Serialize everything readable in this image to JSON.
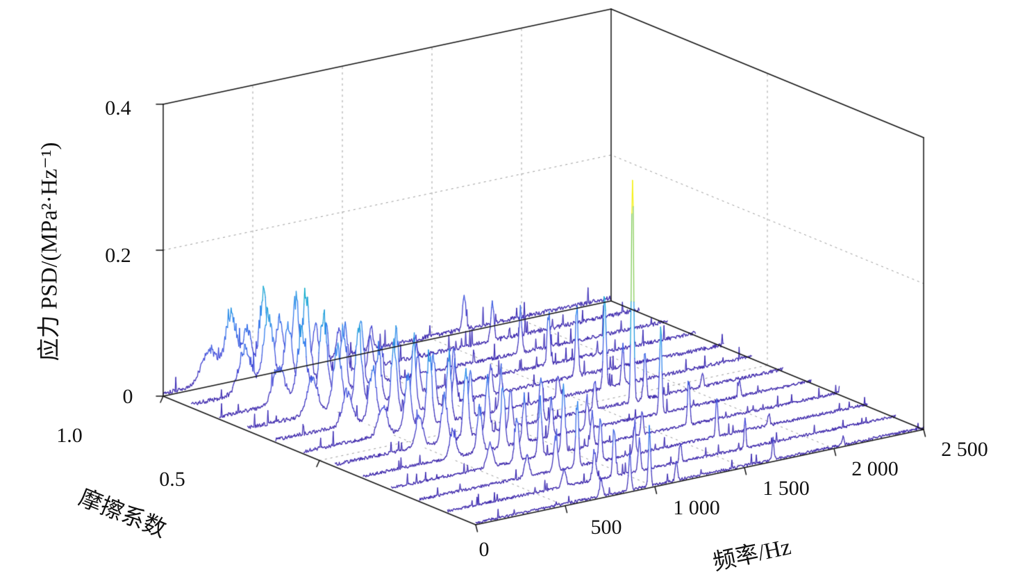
{
  "figure": {
    "background": "#ffffff",
    "line_base_color": "#3e26a8",
    "grid_color": "#9a9a9a",
    "axis_color": "#111111"
  },
  "chart_data": {
    "type": "line",
    "subtype": "3d-waterfall-psd",
    "title": "",
    "x_axis": {
      "label": "频率/Hz",
      "min": 0,
      "max": 2500,
      "ticks": [
        "0",
        "500",
        "1 000",
        "1 500",
        "2 000",
        "2 500"
      ],
      "tick_values": [
        0,
        500,
        1000,
        1500,
        2000,
        2500
      ]
    },
    "y_axis": {
      "label": "摩擦系数",
      "min": 0,
      "max": 1.0,
      "ticks": [
        "1.0",
        "0.5"
      ],
      "tick_values": [
        1.0,
        0.5
      ]
    },
    "z_axis": {
      "label": "应力 PSD/(MPa²·Hz⁻¹)",
      "min": 0,
      "max": 0.4,
      "ticks": [
        "0",
        "0.2",
        "0.4"
      ],
      "tick_values": [
        0,
        0.2,
        0.4
      ]
    },
    "grid": true,
    "legend": "none",
    "colormap": {
      "name": "parula",
      "stops": [
        [
          0.0,
          "#3e26a8"
        ],
        [
          0.14,
          "#4348d8"
        ],
        [
          0.29,
          "#2e7ff0"
        ],
        [
          0.43,
          "#0faccf"
        ],
        [
          0.57,
          "#30c295"
        ],
        [
          0.71,
          "#79ca56"
        ],
        [
          0.85,
          "#bfd232"
        ],
        [
          1.0,
          "#f5f115"
        ]
      ]
    },
    "color_scale_max": 0.28,
    "n_points_per_trace": 640,
    "series": [
      {
        "friction": 1.0,
        "noise": 0.0045,
        "seed": 101,
        "peaks": [
          [
            260,
            0.045,
            45
          ],
          [
            380,
            0.09,
            32
          ],
          [
            470,
            0.06,
            26
          ],
          [
            560,
            0.11,
            22
          ],
          [
            650,
            0.07,
            20
          ],
          [
            740,
            0.09,
            18
          ],
          [
            850,
            0.05,
            14
          ],
          [
            980,
            0.035,
            12
          ],
          [
            1160,
            0.03,
            10
          ],
          [
            1680,
            0.045,
            9
          ]
        ]
      },
      {
        "friction": 0.91,
        "noise": 0.0045,
        "seed": 102,
        "peaks": [
          [
            300,
            0.06,
            38
          ],
          [
            430,
            0.1,
            28
          ],
          [
            540,
            0.08,
            22
          ],
          [
            640,
            0.12,
            20
          ],
          [
            750,
            0.07,
            16
          ],
          [
            860,
            0.06,
            13
          ],
          [
            1000,
            0.04,
            11
          ],
          [
            1250,
            0.03,
            9
          ],
          [
            1680,
            0.05,
            9
          ]
        ]
      },
      {
        "friction": 0.82,
        "noise": 0.004,
        "seed": 103,
        "peaks": [
          [
            330,
            0.05,
            34
          ],
          [
            460,
            0.09,
            26
          ],
          [
            580,
            0.11,
            20
          ],
          [
            690,
            0.08,
            17
          ],
          [
            790,
            0.1,
            14
          ],
          [
            900,
            0.05,
            12
          ],
          [
            1100,
            0.04,
            10
          ],
          [
            1680,
            0.06,
            8
          ]
        ]
      },
      {
        "friction": 0.73,
        "noise": 0.004,
        "seed": 104,
        "peaks": [
          [
            360,
            0.05,
            30
          ],
          [
            500,
            0.08,
            24
          ],
          [
            620,
            0.1,
            18
          ],
          [
            730,
            0.07,
            15
          ],
          [
            830,
            0.09,
            13
          ],
          [
            950,
            0.05,
            11
          ],
          [
            1150,
            0.045,
            9
          ],
          [
            1680,
            0.07,
            8
          ],
          [
            2150,
            0.018,
            7
          ]
        ]
      },
      {
        "friction": 0.64,
        "noise": 0.0038,
        "seed": 105,
        "peaks": [
          [
            400,
            0.045,
            26
          ],
          [
            540,
            0.07,
            20
          ],
          [
            660,
            0.09,
            16
          ],
          [
            770,
            0.08,
            13
          ],
          [
            880,
            0.07,
            12
          ],
          [
            1000,
            0.05,
            10
          ],
          [
            1200,
            0.04,
            9
          ],
          [
            1680,
            0.09,
            8
          ]
        ]
      },
      {
        "friction": 0.55,
        "noise": 0.0036,
        "seed": 106,
        "peaks": [
          [
            440,
            0.04,
            24
          ],
          [
            580,
            0.07,
            18
          ],
          [
            700,
            0.1,
            14
          ],
          [
            810,
            0.09,
            12
          ],
          [
            930,
            0.06,
            10
          ],
          [
            1100,
            0.05,
            9
          ],
          [
            1420,
            0.03,
            8
          ],
          [
            1680,
            0.13,
            8
          ],
          [
            1780,
            0.05,
            7
          ]
        ]
      },
      {
        "friction": 0.45,
        "noise": 0.0034,
        "seed": 107,
        "peaks": [
          [
            470,
            0.04,
            20
          ],
          [
            610,
            0.06,
            16
          ],
          [
            730,
            0.09,
            13
          ],
          [
            850,
            0.07,
            11
          ],
          [
            980,
            0.05,
            9
          ],
          [
            1150,
            0.06,
            9
          ],
          [
            1450,
            0.04,
            8
          ],
          [
            1660,
            0.28,
            7
          ],
          [
            1730,
            0.07,
            7
          ],
          [
            2050,
            0.02,
            6
          ]
        ]
      },
      {
        "friction": 0.36,
        "noise": 0.0032,
        "seed": 108,
        "peaks": [
          [
            500,
            0.035,
            18
          ],
          [
            650,
            0.06,
            14
          ],
          [
            780,
            0.08,
            11
          ],
          [
            900,
            0.06,
            10
          ],
          [
            1050,
            0.05,
            9
          ],
          [
            1250,
            0.04,
            8
          ],
          [
            1660,
            0.11,
            7
          ],
          [
            2100,
            0.022,
            6
          ]
        ]
      },
      {
        "friction": 0.27,
        "noise": 0.003,
        "seed": 109,
        "peaks": [
          [
            550,
            0.03,
            16
          ],
          [
            700,
            0.055,
            12
          ],
          [
            830,
            0.075,
            10
          ],
          [
            960,
            0.09,
            9
          ],
          [
            1120,
            0.045,
            8
          ],
          [
            1400,
            0.03,
            7
          ],
          [
            1660,
            0.065,
            6
          ]
        ]
      },
      {
        "friction": 0.18,
        "noise": 0.003,
        "seed": 110,
        "peaks": [
          [
            600,
            0.028,
            13
          ],
          [
            760,
            0.05,
            10
          ],
          [
            880,
            0.085,
            8
          ],
          [
            1010,
            0.055,
            8
          ],
          [
            1200,
            0.035,
            7
          ],
          [
            1660,
            0.05,
            6
          ],
          [
            1950,
            0.015,
            6
          ]
        ]
      },
      {
        "friction": 0.09,
        "noise": 0.0028,
        "seed": 111,
        "peaks": [
          [
            650,
            0.022,
            11
          ],
          [
            820,
            0.04,
            9
          ],
          [
            930,
            0.07,
            7
          ],
          [
            1070,
            0.04,
            7
          ],
          [
            1300,
            0.025,
            6
          ],
          [
            1660,
            0.04,
            5
          ]
        ]
      },
      {
        "friction": 0.0,
        "noise": 0.0028,
        "seed": 112,
        "peaks": [
          [
            700,
            0.02,
            9
          ],
          [
            860,
            0.045,
            7
          ],
          [
            970,
            0.075,
            6
          ],
          [
            1120,
            0.03,
            6
          ],
          [
            1660,
            0.03,
            5
          ],
          [
            2050,
            0.012,
            5
          ]
        ]
      }
    ]
  }
}
